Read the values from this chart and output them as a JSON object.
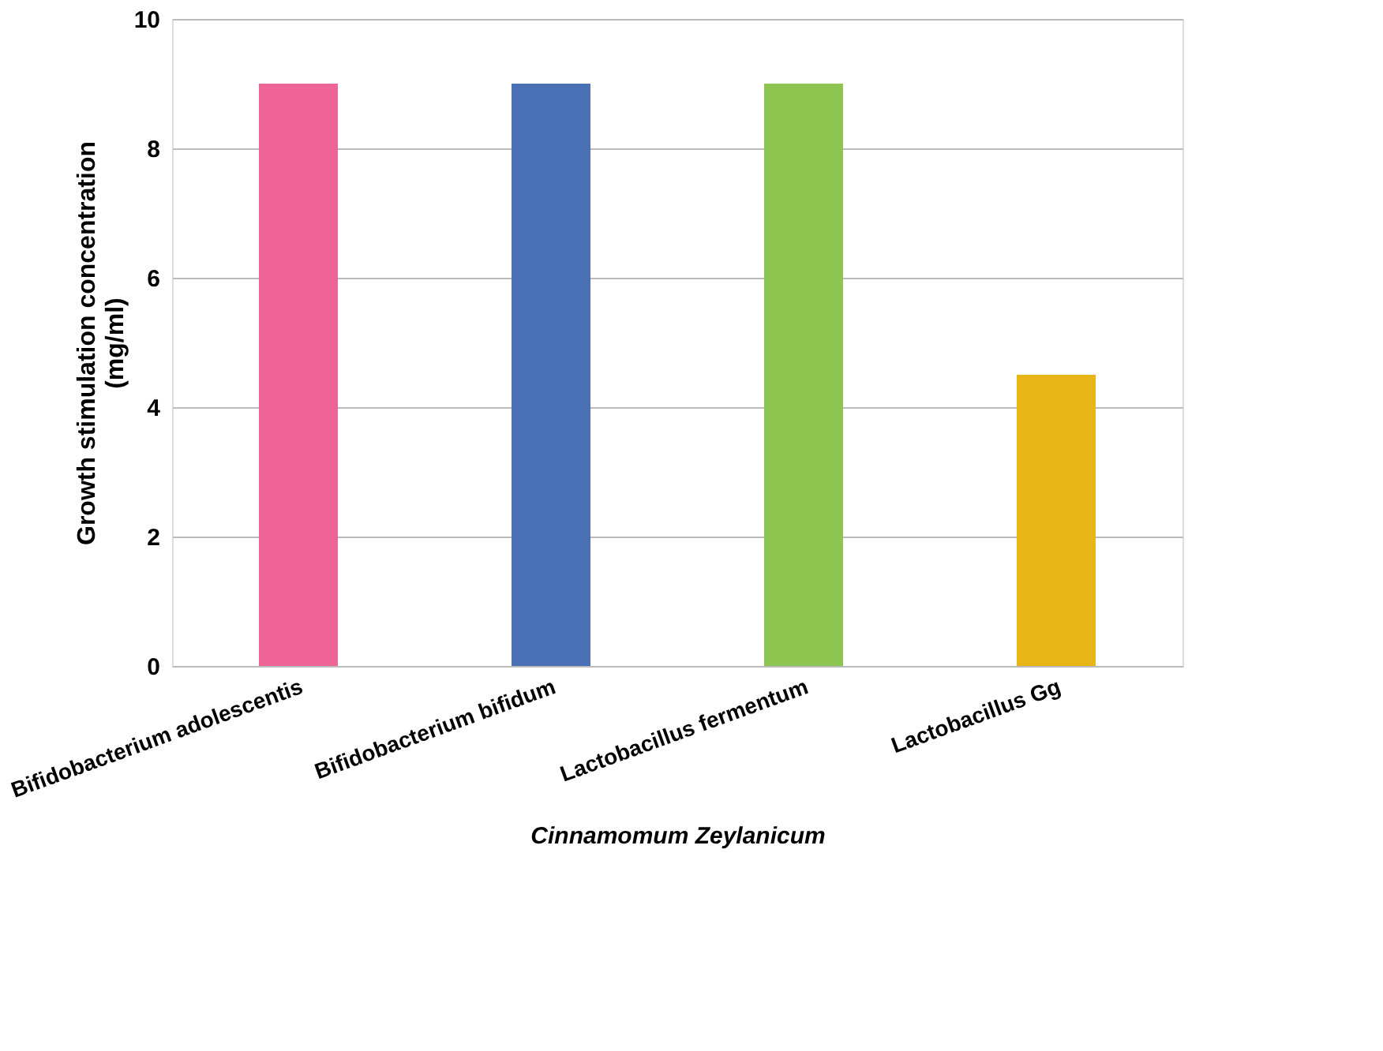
{
  "chart_data": {
    "type": "bar",
    "categories": [
      "Bifidobacterium adolescentis",
      "Bifidobacterium bifidum",
      "Lactobacillus fermentum",
      "Lactobacillus Gg"
    ],
    "values": [
      9,
      9,
      9,
      4.5
    ],
    "colors": [
      "#ef6496",
      "#4a71b6",
      "#8ec551",
      "#e8b717"
    ],
    "xlabel": "Cinnamomum Zeylanicum",
    "ylabel": "Growth stimulation concentration (mg/ml)",
    "ylim": [
      0,
      10
    ],
    "yticks": [
      0,
      2,
      4,
      6,
      8,
      10
    ],
    "grid": "y"
  }
}
